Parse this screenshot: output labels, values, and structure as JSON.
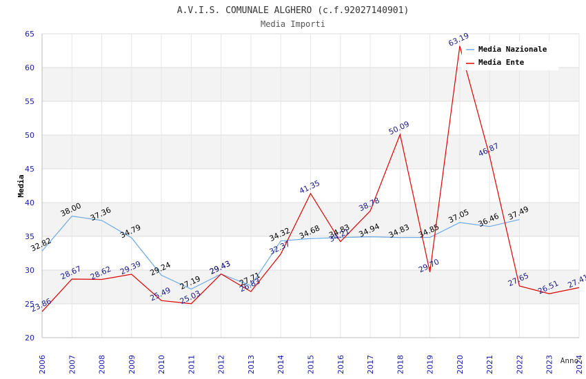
{
  "chart_data": {
    "type": "line",
    "title": "A.V.I.S. COMUNALE ALGHERO (c.f.92027140901)",
    "subtitle": "Media Importi",
    "xlabel": "Anno",
    "ylabel": "Media",
    "ylim": [
      20,
      65
    ],
    "yticks": [
      "20",
      "25",
      "30",
      "35",
      "40",
      "45",
      "50",
      "55",
      "60",
      "65"
    ],
    "categories": [
      "2006",
      "2007",
      "2008",
      "2009",
      "2010",
      "2011",
      "2012",
      "2013",
      "2014",
      "2015",
      "2016",
      "2017",
      "2018",
      "2019",
      "2020",
      "2021",
      "2022",
      "2023",
      "2024"
    ],
    "legend_position": "top-right",
    "series": [
      {
        "name": "Media Nazionale",
        "color": "#6aa8e8",
        "label_color": "#000000",
        "values": [
          32.82,
          38.0,
          37.36,
          34.79,
          29.24,
          27.19,
          29.43,
          27.71,
          34.32,
          34.68,
          34.83,
          34.94,
          34.83,
          34.85,
          37.05,
          36.46,
          37.49,
          null,
          null
        ],
        "labels": [
          "32.82",
          "38.00",
          "37.36",
          "34.79",
          "29.24",
          "27.19",
          "29.43",
          "27.71",
          "34.32",
          "34.68",
          "34.83",
          "34.94",
          "34.83",
          "34.85",
          "37.05",
          "36.46",
          "37.49",
          "",
          ""
        ]
      },
      {
        "name": "Media Ente",
        "color": "#e00000",
        "label_color": "#1a1a8c",
        "values": [
          23.86,
          28.67,
          28.62,
          29.39,
          25.49,
          25.03,
          29.43,
          26.83,
          32.37,
          41.35,
          34.21,
          38.78,
          50.09,
          29.7,
          63.19,
          46.87,
          27.65,
          26.51,
          27.41
        ],
        "labels": [
          "23.86",
          "28.67",
          "28.62",
          "29.39",
          "25.49",
          "25.03",
          "29.43",
          "26.83",
          "32.37",
          "41.35",
          "34.21",
          "38.78",
          "50.09",
          "29.70",
          "63.19",
          "46.87",
          "27.65",
          "26.51",
          "27.41"
        ]
      }
    ]
  }
}
